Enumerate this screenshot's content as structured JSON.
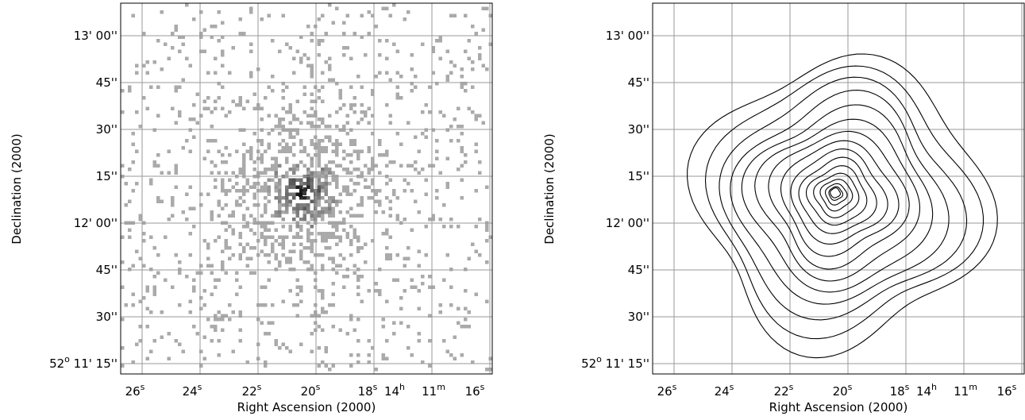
{
  "chart_data": [
    {
      "type": "heatmap",
      "title": "",
      "xlabel": "Right Ascension (2000)",
      "ylabel": "Declination (2000)",
      "grid": true,
      "colormap": "inverse-gray",
      "x_ticks": [
        {
          "base": "26",
          "sup": "s"
        },
        {
          "base": "24",
          "sup": "s"
        },
        {
          "base": "22",
          "sup": "s"
        },
        {
          "base": "20",
          "sup": "s"
        },
        {
          "base": "18",
          "sup": "s"
        },
        {
          "base": "14",
          "sup": "h"
        },
        {
          "base": " 11",
          "sup": "m"
        },
        {
          "base": " 16",
          "sup": "s"
        }
      ],
      "y_ticks": [
        {
          "pre": "",
          "sup": "",
          "text": "13' 00''"
        },
        {
          "pre": "",
          "sup": "",
          "text": "45''"
        },
        {
          "pre": "",
          "sup": "",
          "text": "30''"
        },
        {
          "pre": "",
          "sup": "",
          "text": "15''"
        },
        {
          "pre": "",
          "sup": "",
          "text": "12' 00''"
        },
        {
          "pre": "",
          "sup": "",
          "text": "45''"
        },
        {
          "pre": "",
          "sup": "",
          "text": "30''"
        },
        {
          "pre": "52",
          "sup": "o",
          "text": " 11' 15''"
        }
      ],
      "source_center": {
        "ra_s": 20.4,
        "dec_arcsec": 12
      }
    },
    {
      "type": "contour",
      "title": "",
      "xlabel": "Right Ascension (2000)",
      "ylabel": "Declination (2000)",
      "grid": true,
      "x_ticks": [
        {
          "base": "26",
          "sup": "s"
        },
        {
          "base": "24",
          "sup": "s"
        },
        {
          "base": "22",
          "sup": "s"
        },
        {
          "base": "20",
          "sup": "s"
        },
        {
          "base": "18",
          "sup": "s"
        },
        {
          "base": "14",
          "sup": "h"
        },
        {
          "base": " 11",
          "sup": "m"
        },
        {
          "base": " 16",
          "sup": "s"
        }
      ],
      "y_ticks": [
        {
          "pre": "",
          "sup": "",
          "text": "13' 00''"
        },
        {
          "pre": "",
          "sup": "",
          "text": "45''"
        },
        {
          "pre": "",
          "sup": "",
          "text": "30''"
        },
        {
          "pre": "",
          "sup": "",
          "text": "15''"
        },
        {
          "pre": "",
          "sup": "",
          "text": "12' 00''"
        },
        {
          "pre": "",
          "sup": "",
          "text": "45''"
        },
        {
          "pre": "",
          "sup": "",
          "text": "30''"
        },
        {
          "pre": "52",
          "sup": "o",
          "text": " 11' 15''"
        }
      ],
      "contour_levels": 16,
      "source_center": {
        "ra_s": 20.4,
        "dec_arcsec": 12
      }
    }
  ]
}
